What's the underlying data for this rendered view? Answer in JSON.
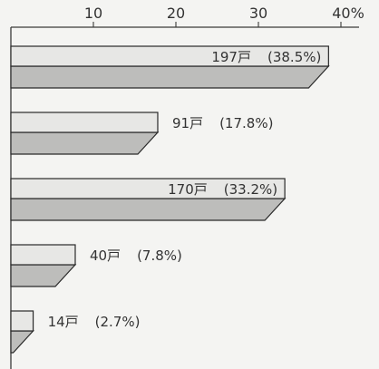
{
  "chart_data": {
    "type": "bar",
    "orientation": "horizontal",
    "style": "3d",
    "categories": [
      "",
      "",
      "",
      "",
      ""
    ],
    "series": [
      {
        "values": [
          38.5,
          17.8,
          33.2,
          7.8,
          2.7
        ],
        "counts_label": [
          "197戸",
          "91戸",
          "170戸",
          "40戸",
          "14戸"
        ],
        "percent_label": [
          "(38.5%)",
          "(17.8%)",
          "(33.2%)",
          "(7.8%)",
          "(2.7%)"
        ]
      }
    ],
    "xlim": [
      0,
      40
    ],
    "xticks": [
      {
        "value": 10,
        "label": "10"
      },
      {
        "value": 20,
        "label": "20"
      },
      {
        "value": 30,
        "label": "30"
      },
      {
        "value": 40,
        "label": "40%"
      }
    ],
    "grid": false,
    "title": "",
    "xlabel": "",
    "ylabel": "",
    "colors": {
      "bar_front": "#e7e7e5",
      "bar_bottom": "#bdbdbb",
      "outline": "#2a2a2a",
      "axis": "#3a3a3a",
      "background": "#f4f4f2"
    }
  }
}
